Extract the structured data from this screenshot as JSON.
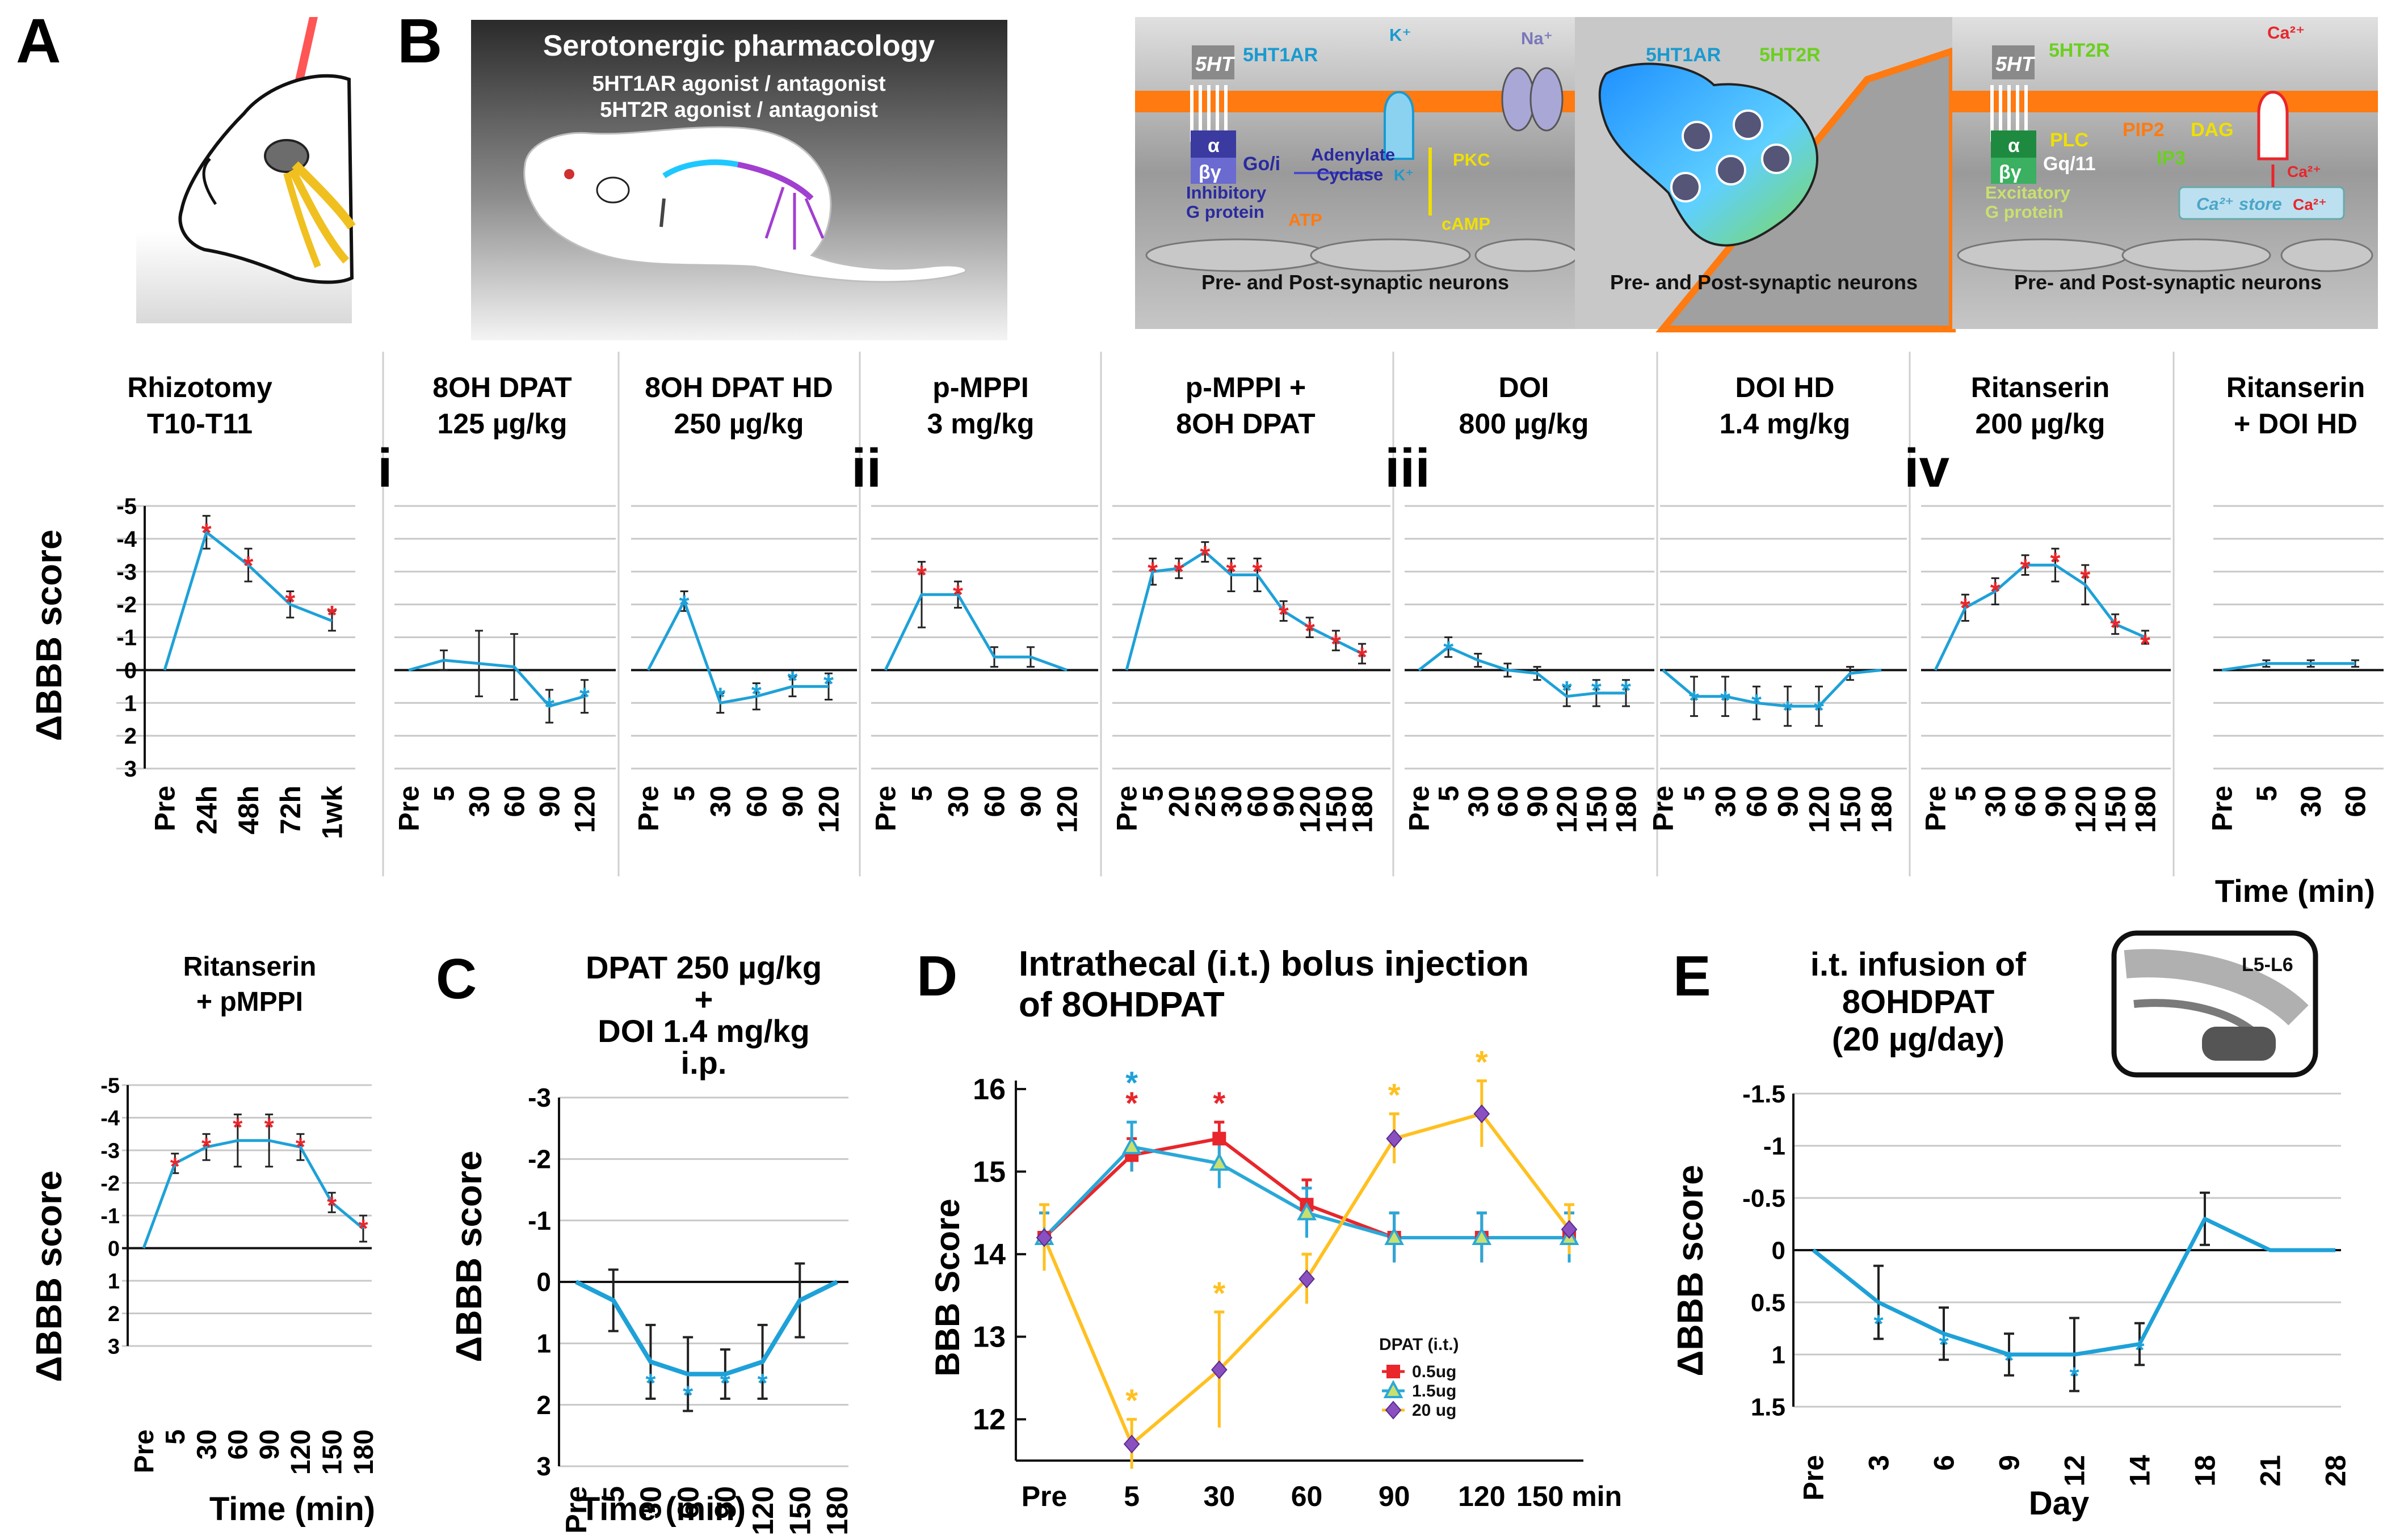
{
  "panel_letters": {
    "a": "A",
    "b": "B",
    "c": "C",
    "d": "D",
    "e": "E"
  },
  "roman": {
    "i": "i",
    "ii": "ii",
    "iii": "iii",
    "iv": "iv"
  },
  "banner": {
    "title": "Serotonergic pharmacology",
    "line1": "5HT1AR agonist / antagonist",
    "line2": "5HT2R agonist / antagonist"
  },
  "schematics": {
    "left": {
      "receptor": "5HT",
      "receptor_name": "5HT1AR",
      "alpha": "α",
      "beta_gamma": "βγ",
      "g_type": "Go/i",
      "g_protein_l1": "Inhibitory",
      "g_protein_l2": "G protein",
      "adenylate_l1": "Adenylate",
      "adenylate_l2": "Cyclase",
      "atp": "ATP",
      "camp": "cAMP",
      "pkc": "PKC",
      "k_ion": "K⁺",
      "k_ion2": "K⁺",
      "na_ion": "Na⁺",
      "caption": "Pre- and Post-synaptic neurons"
    },
    "middle": {
      "r1": "5HT1AR",
      "r2": "5HT2R",
      "caption": "Pre- and Post-synaptic neurons"
    },
    "right": {
      "receptor": "5HT",
      "receptor_name": "5HT2R",
      "alpha": "α",
      "beta_gamma": "βγ",
      "g_type": "Gq/11",
      "plc": "PLC",
      "pip2": "PIP2",
      "dag": "DAG",
      "ip3": "IP3",
      "g_protein_l1": "Excitatory",
      "g_protein_l2": "G protein",
      "ca_store": "Ca²⁺ store",
      "ca1": "Ca²⁺",
      "ca2": "Ca²⁺",
      "ca3": "Ca²⁺",
      "caption": "Pre- and Post-synaptic neurons"
    }
  },
  "e_inset_label": "L5-L6",
  "row_ylabel": "ΔBBB score",
  "row_time_label": "Time (min)",
  "chart_data": [
    {
      "id": "rhizotomy",
      "type": "line",
      "title": [
        "Rhizotomy",
        "T10-T11"
      ],
      "categories": [
        "Pre",
        "24h",
        "48h",
        "72h",
        "1wk"
      ],
      "values": [
        0,
        -4.2,
        -3.2,
        -2.0,
        -1.5
      ],
      "errors": [
        0,
        0.5,
        0.5,
        0.4,
        0.3
      ],
      "stars": [
        0,
        1,
        1,
        1,
        1
      ],
      "star_color": "red",
      "ylim": [
        -5,
        3
      ],
      "ylabel": "ΔBBB score"
    },
    {
      "id": "dpat125",
      "type": "line",
      "title": [
        "8OH DPAT",
        "125 µg/kg"
      ],
      "categories": [
        "Pre",
        "5",
        "30",
        "60",
        "90",
        "120"
      ],
      "values": [
        0,
        -0.3,
        -0.2,
        -0.1,
        1.1,
        0.8
      ],
      "errors": [
        0,
        0.3,
        1.0,
        1.0,
        0.5,
        0.5
      ],
      "stars": [
        0,
        0,
        0,
        0,
        1,
        1
      ],
      "star_color": "blue",
      "ylim": [
        -5,
        3
      ]
    },
    {
      "id": "dpat250",
      "type": "line",
      "title": [
        "8OH DPAT HD",
        "250 µg/kg"
      ],
      "categories": [
        "Pre",
        "5",
        "30",
        "60",
        "90",
        "120"
      ],
      "values": [
        0,
        -2.1,
        1.0,
        0.8,
        0.5,
        0.5
      ],
      "errors": [
        0,
        0.3,
        0.3,
        0.4,
        0.3,
        0.4
      ],
      "stars": [
        0,
        -1,
        1,
        1,
        1,
        1
      ],
      "star_color": "blue",
      "ylim": [
        -5,
        3
      ]
    },
    {
      "id": "pmppi",
      "type": "line",
      "title": [
        "p-MPPI",
        "3 mg/kg"
      ],
      "categories": [
        "Pre",
        "5",
        "30",
        "60",
        "90",
        "120"
      ],
      "values": [
        0,
        -2.3,
        -2.3,
        -0.4,
        -0.4,
        0
      ],
      "errors": [
        0,
        1.0,
        0.4,
        0.3,
        0.3,
        0
      ],
      "stars": [
        0,
        -1,
        -1,
        0,
        0,
        0
      ],
      "star_color": "red",
      "ylim": [
        -5,
        3
      ]
    },
    {
      "id": "pmppi_dpat",
      "type": "line",
      "title": [
        "p-MPPI +",
        "8OH DPAT"
      ],
      "categories": [
        "Pre",
        "5",
        "20",
        "25",
        "30",
        "60",
        "90",
        "120",
        "150",
        "180"
      ],
      "values": [
        0,
        -3.0,
        -3.1,
        -3.6,
        -2.9,
        -2.9,
        -1.8,
        -1.3,
        -0.9,
        -0.5
      ],
      "errors": [
        0,
        0.4,
        0.3,
        0.3,
        0.5,
        0.5,
        0.3,
        0.3,
        0.3,
        0.3
      ],
      "stars": [
        0,
        -1,
        -1,
        -1,
        -1,
        -1,
        -1,
        -1,
        -1,
        -1
      ],
      "star_color": "red",
      "ylim": [
        -5,
        3
      ]
    },
    {
      "id": "doi800",
      "type": "line",
      "title": [
        "DOI",
        "800 µg/kg"
      ],
      "categories": [
        "Pre",
        "5",
        "30",
        "60",
        "90",
        "120",
        "150",
        "180"
      ],
      "values": [
        0,
        -0.7,
        -0.3,
        0,
        0.1,
        0.8,
        0.7,
        0.7
      ],
      "errors": [
        0,
        0.3,
        0.2,
        0.2,
        0.2,
        0.3,
        0.4,
        0.4
      ],
      "stars": [
        0,
        -1,
        0,
        0,
        0,
        1,
        1,
        1
      ],
      "star_color": "blue",
      "ylim": [
        -5,
        3
      ]
    },
    {
      "id": "doihd",
      "type": "line",
      "title": [
        "DOI HD",
        "1.4 mg/kg"
      ],
      "categories": [
        "Pre",
        "5",
        "30",
        "60",
        "90",
        "120",
        "150",
        "180"
      ],
      "values": [
        0,
        0.8,
        0.8,
        1.0,
        1.1,
        1.1,
        0.1,
        0
      ],
      "errors": [
        0,
        0.6,
        0.6,
        0.5,
        0.6,
        0.6,
        0.2,
        0
      ],
      "stars": [
        0,
        1,
        1,
        1,
        1,
        1,
        0,
        0
      ],
      "star_color": "blue",
      "ylim": [
        -5,
        3
      ]
    },
    {
      "id": "ritanserin",
      "type": "line",
      "title": [
        "Ritanserin",
        "200 µg/kg"
      ],
      "categories": [
        "Pre",
        "5",
        "30",
        "60",
        "90",
        "120",
        "150",
        "180"
      ],
      "values": [
        0,
        -1.9,
        -2.4,
        -3.2,
        -3.2,
        -2.6,
        -1.4,
        -1.0
      ],
      "errors": [
        0,
        0.4,
        0.4,
        0.3,
        0.5,
        0.6,
        0.3,
        0.2
      ],
      "stars": [
        0,
        -1,
        -1,
        -1,
        -1,
        -1,
        -1,
        -1
      ],
      "star_color": "red",
      "ylim": [
        -5,
        3
      ]
    },
    {
      "id": "ritanserin_doi",
      "type": "line",
      "title": [
        "Ritanserin",
        "+ DOI HD"
      ],
      "categories": [
        "Pre",
        "5",
        "30",
        "60"
      ],
      "values": [
        0,
        -0.2,
        -0.2,
        -0.2
      ],
      "errors": [
        0,
        0.1,
        0.1,
        0.1
      ],
      "stars": [
        0,
        0,
        0,
        0
      ],
      "star_color": "red",
      "ylim": [
        -5,
        3
      ]
    },
    {
      "id": "ritanserin_pmppi",
      "type": "line",
      "title": [
        "Ritanserin",
        "+ pMPPI"
      ],
      "categories": [
        "Pre",
        "5",
        "30",
        "60",
        "90",
        "120",
        "150",
        "180"
      ],
      "values": [
        0,
        -2.6,
        -3.1,
        -3.3,
        -3.3,
        -3.1,
        -1.4,
        -0.6
      ],
      "errors": [
        0,
        0.3,
        0.4,
        0.8,
        0.8,
        0.4,
        0.3,
        0.4
      ],
      "stars": [
        0,
        -1,
        -1,
        -1,
        -1,
        -1,
        -1,
        -1
      ],
      "star_color": "red",
      "ylim": [
        -5,
        3
      ],
      "ylabel": "ΔBBB score",
      "xlabel": "Time (min)"
    },
    {
      "id": "c_combo",
      "type": "line",
      "title": [
        "DPAT 250 µg/kg",
        "+",
        "DOI 1.4 mg/kg",
        "i.p."
      ],
      "categories": [
        "Pre",
        "5",
        "30",
        "60",
        "90",
        "120",
        "150",
        "180"
      ],
      "values": [
        0,
        0.3,
        1.3,
        1.5,
        1.5,
        1.3,
        0.3,
        0
      ],
      "errors": [
        0,
        0.5,
        0.6,
        0.6,
        0.4,
        0.6,
        0.6,
        0
      ],
      "stars": [
        0,
        0,
        1,
        1,
        1,
        1,
        0,
        0
      ],
      "star_color": "blue",
      "ylim": [
        -3,
        3
      ],
      "ylabel": "ΔBBB score",
      "xlabel": "Time (min)"
    },
    {
      "id": "d_intrathecal",
      "type": "line",
      "title": [
        "Intrathecal (i.t.) bolus injection",
        "of 8OHDPAT"
      ],
      "categories": [
        "Pre",
        "5",
        "30",
        "60",
        "90",
        "120",
        "150 min"
      ],
      "ylim": [
        11.5,
        16
      ],
      "yticks": [
        12,
        13,
        14,
        15,
        16
      ],
      "ylabel": "BBB Score",
      "legend_title": "DPAT (i.t.)",
      "series": [
        {
          "name": "0.5ug",
          "color": "#e8262b",
          "marker": "square",
          "values": [
            14.2,
            15.2,
            15.4,
            14.6,
            14.2,
            14.2,
            14.2
          ],
          "errors": [
            0.3,
            0.2,
            0.2,
            0.3,
            0.3,
            0.3,
            0.3
          ]
        },
        {
          "name": "1.5ug",
          "color": "#2aa8d8",
          "marker": "triangle",
          "values": [
            14.2,
            15.3,
            15.1,
            14.5,
            14.2,
            14.2,
            14.2
          ],
          "errors": [
            0.3,
            0.3,
            0.3,
            0.3,
            0.3,
            0.3,
            0.3
          ]
        },
        {
          "name": "20 ug",
          "color": "#ffc020",
          "marker": "diamond",
          "values": [
            14.2,
            11.7,
            12.6,
            13.7,
            15.4,
            15.7,
            14.3
          ],
          "errors": [
            0.4,
            0.3,
            0.7,
            0.3,
            0.3,
            0.4,
            0.3
          ]
        }
      ],
      "stars": [
        {
          "x": 1,
          "color": "red"
        },
        {
          "x": 1,
          "color": "blue"
        },
        {
          "x": 2,
          "color": "red"
        },
        {
          "x": 1,
          "color": "yellow"
        },
        {
          "x": 2,
          "color": "yellow"
        },
        {
          "x": 4,
          "color": "yellow"
        },
        {
          "x": 5,
          "color": "yellow"
        }
      ]
    },
    {
      "id": "e_infusion",
      "type": "line",
      "title": [
        "i.t. infusion of",
        "8OHDPAT",
        "(20 µg/day)"
      ],
      "categories": [
        "Pre",
        "3",
        "6",
        "9",
        "12",
        "14",
        "18",
        "21",
        "28"
      ],
      "values": [
        0,
        0.5,
        0.8,
        1.0,
        1.0,
        0.9,
        -0.3,
        0,
        0
      ],
      "errors": [
        0,
        0.35,
        0.25,
        0.2,
        0.35,
        0.2,
        0.25,
        0,
        0
      ],
      "stars": [
        0,
        1,
        1,
        1,
        1,
        1,
        0,
        0,
        0
      ],
      "star_color": "blue",
      "ylim": [
        -1.5,
        1.5
      ],
      "yticks": [
        -1.5,
        -1,
        -0.5,
        0,
        0.5,
        1,
        1.5
      ],
      "ylabel": "ΔBBB score",
      "xlabel": "Day"
    }
  ]
}
